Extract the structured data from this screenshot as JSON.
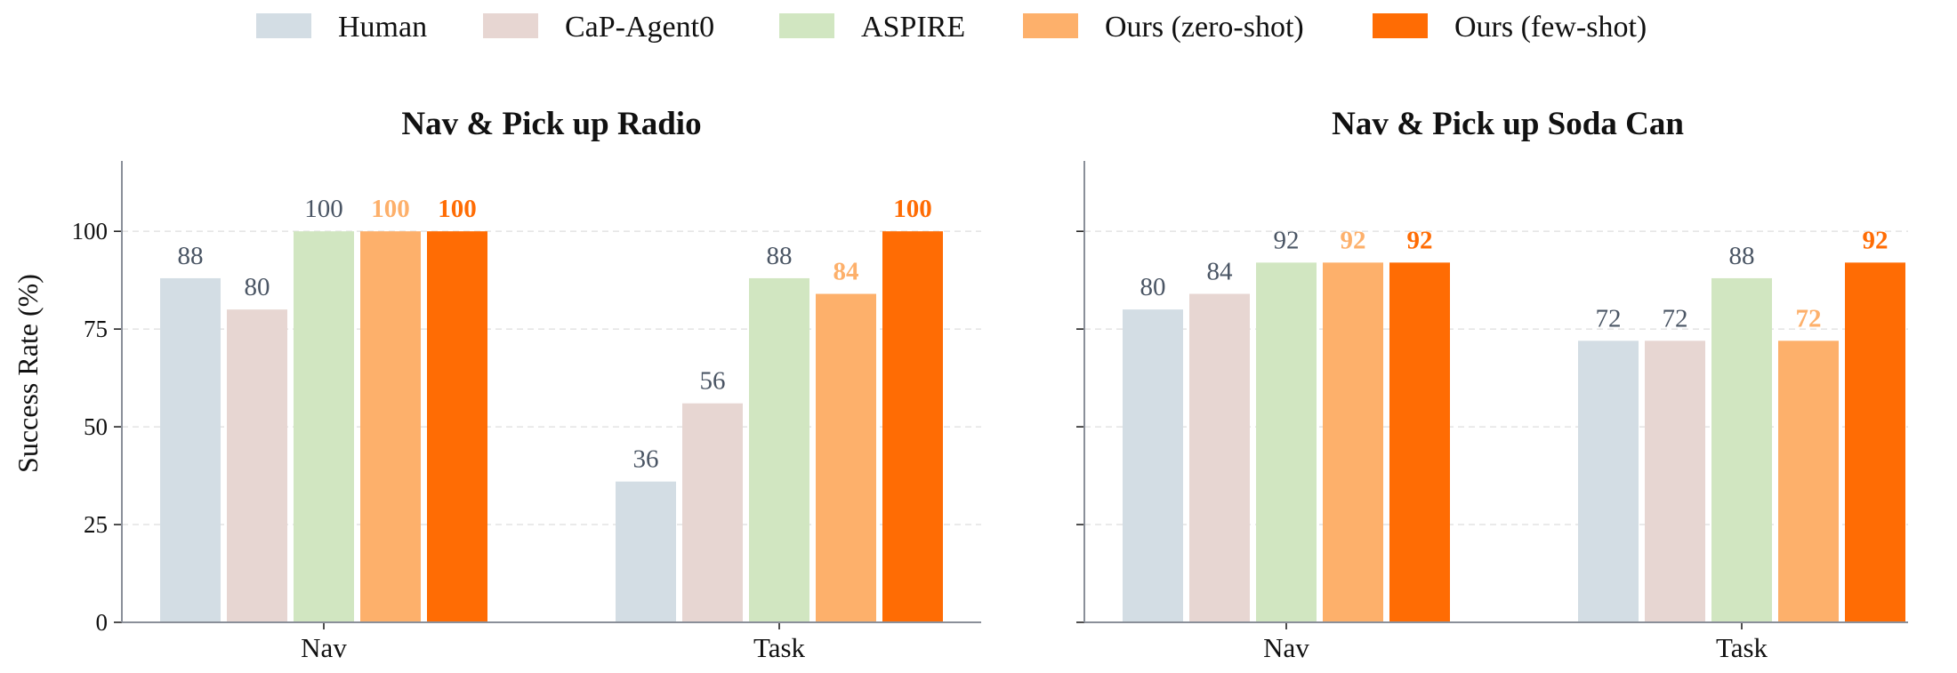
{
  "legend": [
    {
      "name": "Human",
      "color": "#d3dde4"
    },
    {
      "name": "CaP-Agent0",
      "color": "#e7d6d2"
    },
    {
      "name": "ASPIRE",
      "color": "#d1e6c1"
    },
    {
      "name": "Ours (zero-shot)",
      "color": "#fdb06b"
    },
    {
      "name": "Ours (few-shot)",
      "color": "#ff6c04"
    }
  ],
  "ylabel": "Success Rate (%)",
  "chart_data": [
    {
      "type": "bar",
      "title": "Nav & Pick up Radio",
      "categories": [
        "Nav",
        "Task"
      ],
      "ylim": [
        0,
        118
      ],
      "yticks": [
        0,
        25,
        50,
        75,
        100
      ],
      "grid": true,
      "legend_position": "top",
      "series": [
        {
          "name": "Human",
          "values": [
            88,
            36
          ],
          "label_color": "#4a5564",
          "label_bold": false
        },
        {
          "name": "CaP-Agent0",
          "values": [
            80,
            56
          ],
          "label_color": "#4a5564",
          "label_bold": false
        },
        {
          "name": "ASPIRE",
          "values": [
            100,
            88
          ],
          "label_color": "#4a5564",
          "label_bold": false
        },
        {
          "name": "Ours (zero-shot)",
          "values": [
            100,
            84
          ],
          "label_color": "#fdb06b",
          "label_bold": true
        },
        {
          "name": "Ours (few-shot)",
          "values": [
            100,
            100
          ],
          "label_color": "#ff6c04",
          "label_bold": true
        }
      ]
    },
    {
      "type": "bar",
      "title": "Nav & Pick up Soda Can",
      "categories": [
        "Nav",
        "Task"
      ],
      "ylim": [
        0,
        118
      ],
      "yticks": [
        0,
        25,
        50,
        75,
        100
      ],
      "grid": true,
      "legend_position": "top",
      "series": [
        {
          "name": "Human",
          "values": [
            80,
            72
          ],
          "label_color": "#4a5564",
          "label_bold": false
        },
        {
          "name": "CaP-Agent0",
          "values": [
            84,
            72
          ],
          "label_color": "#4a5564",
          "label_bold": false
        },
        {
          "name": "ASPIRE",
          "values": [
            92,
            88
          ],
          "label_color": "#4a5564",
          "label_bold": false
        },
        {
          "name": "Ours (zero-shot)",
          "values": [
            92,
            72
          ],
          "label_color": "#fdb06b",
          "label_bold": true
        },
        {
          "name": "Ours (few-shot)",
          "values": [
            92,
            92
          ],
          "label_color": "#ff6c04",
          "label_bold": true
        }
      ]
    }
  ]
}
